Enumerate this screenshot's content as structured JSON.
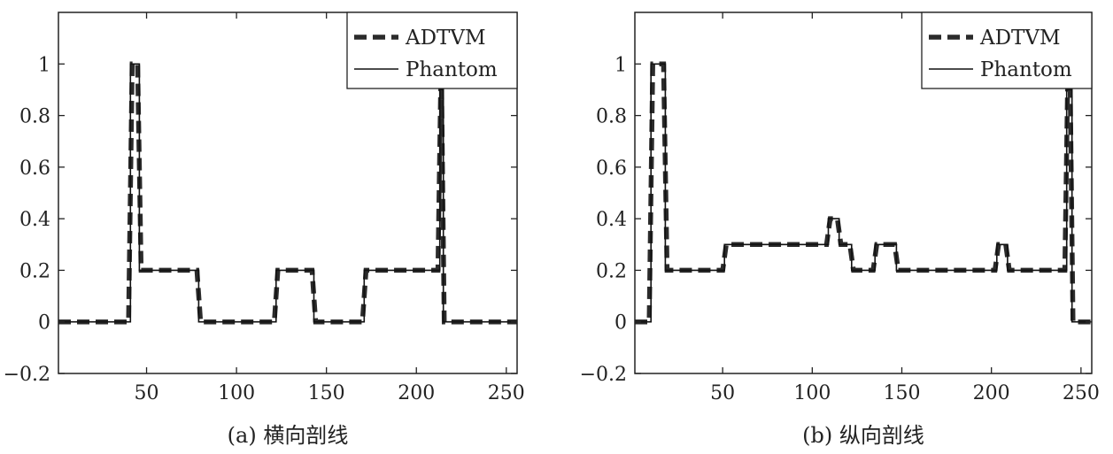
{
  "chart_data": [
    {
      "type": "line",
      "caption": "(a) 横向剖线",
      "xlim": [
        1,
        256
      ],
      "ylim": [
        -0.2,
        1.2
      ],
      "xticks": [
        50,
        100,
        150,
        200,
        250
      ],
      "yticks": [
        -0.2,
        0,
        0.2,
        0.4,
        0.6,
        0.8,
        1
      ],
      "ytick_labels": [
        "−0.2",
        "0",
        "0.2",
        "0.4",
        "0.6",
        "0.8",
        "1"
      ],
      "legend": {
        "placement": "top-right",
        "entries": [
          "ADTVM",
          "Phantom"
        ]
      },
      "series": [
        {
          "name": "ADTVM",
          "style": "dashed-thick",
          "x": [
            1,
            40,
            42,
            42.5,
            44.5,
            45,
            47,
            78,
            80,
            121,
            123,
            142,
            144,
            170,
            172,
            212,
            213.5,
            214,
            215.5,
            256
          ],
          "y": [
            0,
            0,
            1,
            1,
            1,
            1,
            0.2,
            0.2,
            0,
            0,
            0.2,
            0.2,
            0,
            0,
            0.2,
            0.2,
            0.9,
            0.9,
            0,
            0
          ]
        },
        {
          "name": "Phantom",
          "style": "solid-thin",
          "x": [
            1,
            41,
            41,
            46,
            46,
            79,
            79,
            122,
            122,
            143,
            143,
            171,
            171,
            213,
            213,
            215,
            215,
            256
          ],
          "y": [
            0,
            0,
            1,
            1,
            0.2,
            0.2,
            0,
            0,
            0.2,
            0.2,
            0,
            0,
            0.2,
            0.2,
            0.9,
            0.9,
            0,
            0
          ]
        }
      ]
    },
    {
      "type": "line",
      "caption": "(b) 纵向剖线",
      "xlim": [
        1,
        256
      ],
      "ylim": [
        -0.2,
        1.2
      ],
      "xticks": [
        50,
        100,
        150,
        200,
        250
      ],
      "yticks": [
        -0.2,
        0,
        0.2,
        0.4,
        0.6,
        0.8,
        1
      ],
      "ytick_labels": [
        "−0.2",
        "0",
        "0.2",
        "0.4",
        "0.6",
        "0.8",
        "1"
      ],
      "legend": {
        "placement": "top-right",
        "entries": [
          "ADTVM",
          "Phantom"
        ]
      },
      "series": [
        {
          "name": "ADTVM",
          "style": "dashed-thick",
          "x": [
            1,
            9,
            11,
            17,
            19,
            50,
            52,
            108,
            110,
            114,
            116,
            121,
            123,
            134,
            136,
            146,
            148,
            202,
            204,
            208,
            210,
            241,
            242.5,
            244,
            245.5,
            256
          ],
          "y": [
            0,
            0,
            1,
            1,
            0.2,
            0.2,
            0.3,
            0.3,
            0.4,
            0.4,
            0.3,
            0.3,
            0.2,
            0.2,
            0.3,
            0.3,
            0.2,
            0.2,
            0.3,
            0.3,
            0.2,
            0.2,
            0.9,
            0.9,
            0,
            0
          ]
        },
        {
          "name": "Phantom",
          "style": "solid-thin",
          "x": [
            1,
            10,
            10,
            18,
            18,
            51,
            51,
            109,
            109,
            115,
            115,
            122,
            122,
            135,
            135,
            147,
            147,
            203,
            203,
            209,
            209,
            242,
            242,
            245,
            245,
            256
          ],
          "y": [
            0,
            0,
            1,
            1,
            0.2,
            0.2,
            0.3,
            0.3,
            0.4,
            0.4,
            0.3,
            0.3,
            0.2,
            0.2,
            0.3,
            0.3,
            0.2,
            0.2,
            0.3,
            0.3,
            0.2,
            0.2,
            0.9,
            0.9,
            0,
            0
          ]
        }
      ]
    }
  ]
}
